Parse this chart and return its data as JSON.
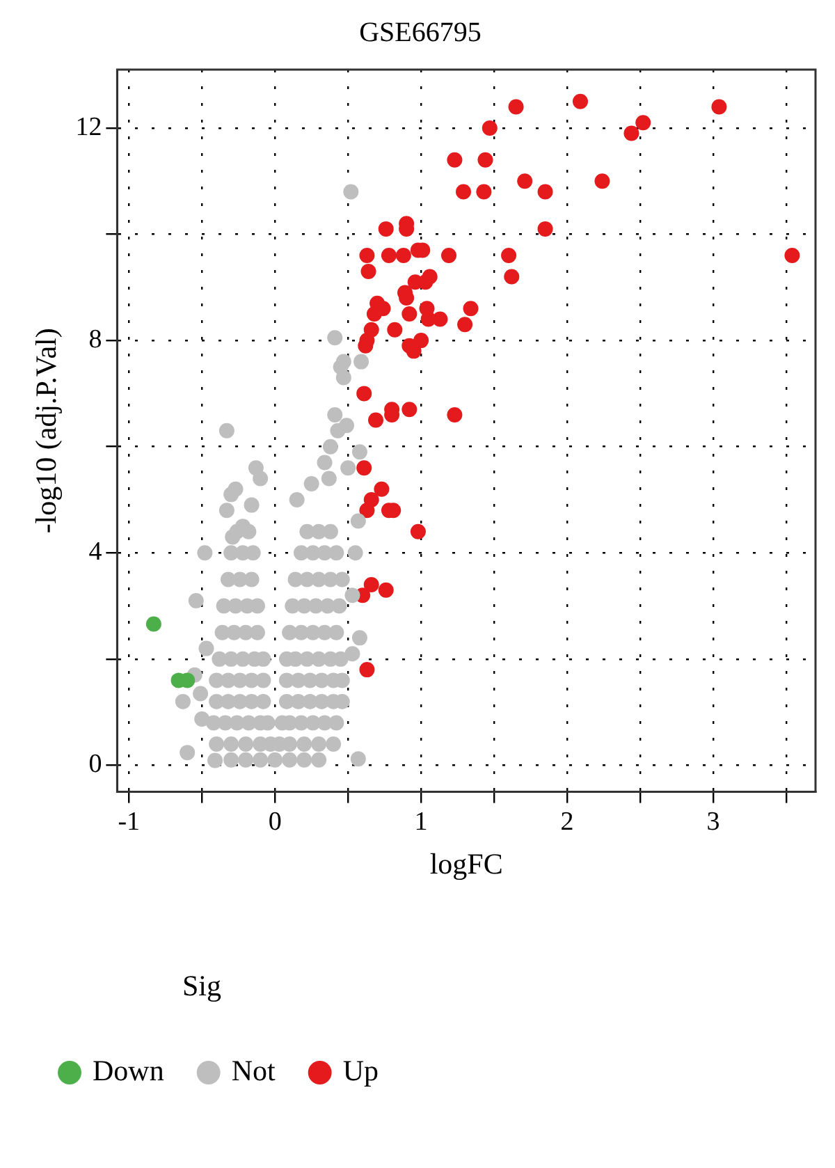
{
  "chart_data": {
    "type": "scatter",
    "title": "GSE66795",
    "xlabel": "logFC",
    "ylabel": "-log10 (adj.P.Val)",
    "legend_title": "Sig",
    "legend": "bottom",
    "marker": "circle",
    "grid": true,
    "xlim": [
      -1.08,
      3.7
    ],
    "ylim": [
      -0.5,
      13.1
    ],
    "xticks": [
      -1,
      {
        "value": -0.5,
        "label": null
      },
      0,
      {
        "value": 0.5,
        "label": null
      },
      1,
      {
        "value": 1.5,
        "label": null
      },
      2,
      {
        "value": 2.5,
        "label": null
      },
      3,
      {
        "value": 3.5,
        "label": null
      }
    ],
    "yticks": [
      0,
      {
        "value": 2,
        "label": null
      },
      4,
      {
        "value": 6,
        "label": null
      },
      8,
      {
        "value": 10,
        "label": null
      },
      12
    ],
    "series": [
      {
        "name": "Down",
        "color": "#4daf4a",
        "x": [
          -0.83,
          -0.66,
          -0.6
        ],
        "values": [
          2.66,
          1.6,
          1.6
        ]
      },
      {
        "name": "Not",
        "color": "#bebebe",
        "x": [
          0.52,
          0.41,
          0.47,
          0.45,
          0.47,
          0.59,
          -0.33,
          0.41,
          0.43,
          0.49,
          0.38,
          0.58,
          0.34,
          0.5,
          -0.13,
          -0.1,
          0.25,
          0.37,
          -0.27,
          -0.3,
          -0.16,
          -0.33,
          0.15,
          0.57,
          -0.22,
          -0.29,
          -0.48,
          -0.54,
          -0.47,
          -0.55,
          -0.63,
          -0.51,
          -0.5,
          -0.6,
          -0.41,
          0.57,
          0.58,
          0.53,
          0.55,
          0.53,
          -0.3,
          -0.2,
          -0.1,
          0,
          0.1,
          0.2,
          0.3,
          -0.4,
          -0.3,
          -0.2,
          -0.1,
          -0.03,
          0.03,
          0.1,
          0.2,
          0.3,
          0.4,
          -0.42,
          -0.34,
          -0.26,
          -0.18,
          -0.1,
          -0.05,
          0.05,
          0.1,
          0.18,
          0.26,
          0.34,
          0.42,
          -0.4,
          -0.32,
          -0.24,
          -0.16,
          -0.08,
          0.08,
          0.16,
          0.24,
          0.32,
          0.4,
          0.46,
          -0.4,
          -0.32,
          -0.24,
          -0.16,
          -0.08,
          0.08,
          0.16,
          0.24,
          0.32,
          0.4,
          0.46,
          -0.38,
          -0.3,
          -0.22,
          -0.14,
          -0.08,
          0.08,
          0.14,
          0.22,
          0.3,
          0.38,
          0.45,
          -0.36,
          -0.28,
          -0.2,
          -0.12,
          0.1,
          0.18,
          0.26,
          0.34,
          0.42,
          -0.35,
          -0.27,
          -0.19,
          -0.12,
          0.12,
          0.2,
          0.28,
          0.36,
          0.44,
          -0.32,
          -0.24,
          -0.16,
          0.14,
          0.22,
          0.3,
          0.38,
          0.46,
          -0.3,
          -0.22,
          -0.15,
          0.18,
          0.26,
          0.34,
          0.42,
          -0.26,
          -0.18,
          0.22,
          0.3,
          0.38
        ],
        "values": [
          10.8,
          8.05,
          7.6,
          7.5,
          7.3,
          7.6,
          6.3,
          6.6,
          6.3,
          6.4,
          6.0,
          5.9,
          5.7,
          5.6,
          5.6,
          5.4,
          5.3,
          5.4,
          5.2,
          5.1,
          4.9,
          4.8,
          5.0,
          4.6,
          4.5,
          4.3,
          4.0,
          3.1,
          2.2,
          1.7,
          1.2,
          1.35,
          0.87,
          0.24,
          0.09,
          0.12,
          2.4,
          2.1,
          4.0,
          3.2,
          0.1,
          0.1,
          0.1,
          0.1,
          0.1,
          0.1,
          0.1,
          0.4,
          0.4,
          0.4,
          0.4,
          0.4,
          0.4,
          0.4,
          0.4,
          0.4,
          0.4,
          0.8,
          0.8,
          0.8,
          0.8,
          0.8,
          0.8,
          0.8,
          0.8,
          0.8,
          0.8,
          0.8,
          0.8,
          1.2,
          1.2,
          1.2,
          1.2,
          1.2,
          1.2,
          1.2,
          1.2,
          1.2,
          1.2,
          1.2,
          1.6,
          1.6,
          1.6,
          1.6,
          1.6,
          1.6,
          1.6,
          1.6,
          1.6,
          1.6,
          1.6,
          2.0,
          2.0,
          2.0,
          2.0,
          2.0,
          2.0,
          2.0,
          2.0,
          2.0,
          2.0,
          2.0,
          2.5,
          2.5,
          2.5,
          2.5,
          2.5,
          2.5,
          2.5,
          2.5,
          2.5,
          3.0,
          3.0,
          3.0,
          3.0,
          3.0,
          3.0,
          3.0,
          3.0,
          3.0,
          3.5,
          3.5,
          3.5,
          3.5,
          3.5,
          3.5,
          3.5,
          3.5,
          4.0,
          4.0,
          4.0,
          4.0,
          4.0,
          4.0,
          4.0,
          4.4,
          4.4,
          4.4,
          4.4,
          4.4
        ]
      },
      {
        "name": "Up",
        "color": "#e41a1c",
        "x": [
          1.65,
          2.09,
          3.04,
          1.47,
          2.44,
          2.52,
          1.23,
          1.44,
          1.29,
          1.43,
          1.71,
          1.85,
          2.24,
          1.85,
          3.54,
          1.6,
          1.62,
          0.76,
          0.9,
          0.9,
          0.63,
          0.78,
          0.88,
          0.98,
          1.01,
          1.19,
          0.64,
          0.96,
          1.03,
          1.06,
          0.89,
          0.9,
          0.7,
          0.74,
          0.68,
          0.92,
          1.04,
          1.05,
          1.13,
          1.34,
          0.82,
          1.3,
          0.66,
          0.63,
          0.92,
          1.0,
          0.62,
          0.95,
          0.61,
          0.69,
          0.8,
          0.8,
          0.92,
          1.23,
          0.61,
          0.73,
          0.66,
          0.63,
          0.78,
          0.81,
          0.98,
          0.6,
          0.66,
          0.76,
          0.63
        ],
        "values": [
          12.4,
          12.5,
          12.4,
          12.0,
          11.9,
          12.1,
          11.4,
          11.4,
          10.8,
          10.8,
          11.0,
          10.8,
          11.0,
          10.1,
          9.6,
          9.6,
          9.2,
          10.1,
          10.2,
          10.1,
          9.6,
          9.6,
          9.6,
          9.7,
          9.7,
          9.6,
          9.3,
          9.1,
          9.1,
          9.2,
          8.9,
          8.8,
          8.7,
          8.6,
          8.5,
          8.5,
          8.6,
          8.4,
          8.4,
          8.6,
          8.2,
          8.3,
          8.2,
          8.0,
          7.9,
          8.0,
          7.9,
          7.8,
          7.0,
          6.5,
          6.7,
          6.6,
          6.7,
          6.6,
          5.6,
          5.2,
          5.0,
          4.8,
          4.8,
          4.8,
          4.4,
          3.2,
          3.4,
          3.3,
          1.8
        ]
      }
    ]
  }
}
